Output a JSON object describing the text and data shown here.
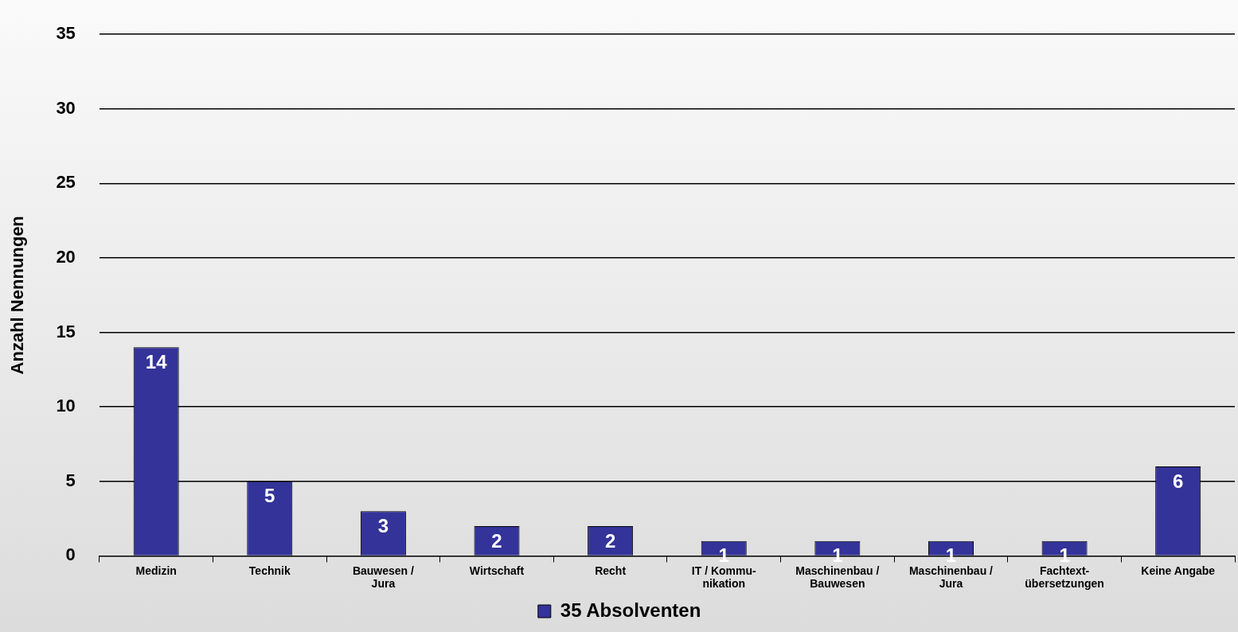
{
  "chart_data": {
    "type": "bar",
    "ylabel": "Anzahl Nennungen",
    "categories": [
      "Medizin",
      "Technik",
      "Bauwesen /\nJura",
      "Wirtschaft",
      "Recht",
      "IT / Kommu-\nnikation",
      "Maschinenbau /\nBauwesen",
      "Maschinenbau /\nJura",
      "Fachtext-\nübersetzungen",
      "Keine Angabe"
    ],
    "series": [
      {
        "name": "35 Absolventen",
        "color": "#333399",
        "values": [
          14,
          5,
          3,
          2,
          2,
          1,
          1,
          1,
          1,
          6
        ]
      }
    ],
    "ylim": [
      0,
      35
    ],
    "yticks": [
      0,
      5,
      10,
      15,
      20,
      25,
      30,
      35
    ],
    "grid": "y",
    "legend": "bottom",
    "data_labels": true
  }
}
